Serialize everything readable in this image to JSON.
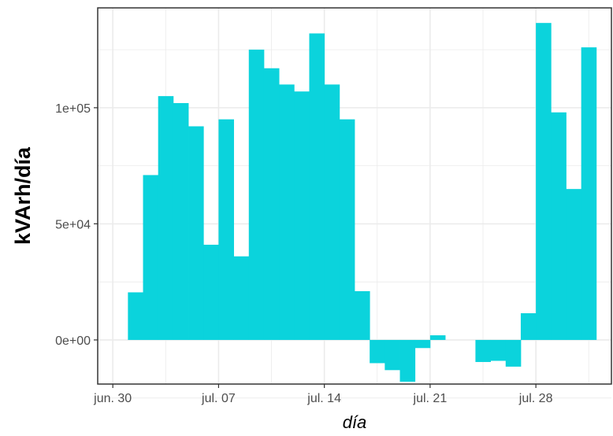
{
  "chart_data": {
    "type": "bar",
    "title": "",
    "xlabel": "día",
    "ylabel": "kVArh/día",
    "x_ticks": [
      "jun. 30",
      "jul. 07",
      "jul. 14",
      "jul. 21",
      "jul. 28"
    ],
    "y_ticks": [
      "0e+00",
      "5e+04",
      "1e+05"
    ],
    "ylim": [
      -19000,
      143000
    ],
    "xlim": [
      "2024-06-29",
      "2024-08-02"
    ],
    "categories": [
      "2024-07-01",
      "2024-07-02",
      "2024-07-03",
      "2024-07-04",
      "2024-07-05",
      "2024-07-06",
      "2024-07-07",
      "2024-07-08",
      "2024-07-09",
      "2024-07-10",
      "2024-07-11",
      "2024-07-12",
      "2024-07-13",
      "2024-07-14",
      "2024-07-15",
      "2024-07-16",
      "2024-07-17",
      "2024-07-18",
      "2024-07-19",
      "2024-07-20",
      "2024-07-21",
      "2024-07-22",
      "2024-07-23",
      "2024-07-24",
      "2024-07-25",
      "2024-07-26",
      "2024-07-27",
      "2024-07-28",
      "2024-07-29",
      "2024-07-30",
      "2024-07-31"
    ],
    "values": [
      20500,
      71000,
      105000,
      102000,
      92000,
      41000,
      95000,
      36000,
      125000,
      117000,
      110000,
      107000,
      132000,
      110000,
      95000,
      21000,
      -10000,
      -13000,
      -18000,
      -3500,
      2000,
      0,
      0,
      -9500,
      -9000,
      -11500,
      11500,
      136500,
      98000,
      65000,
      126000
    ],
    "bar_color": "#0bd3dc",
    "grid": true,
    "legend": "none"
  }
}
